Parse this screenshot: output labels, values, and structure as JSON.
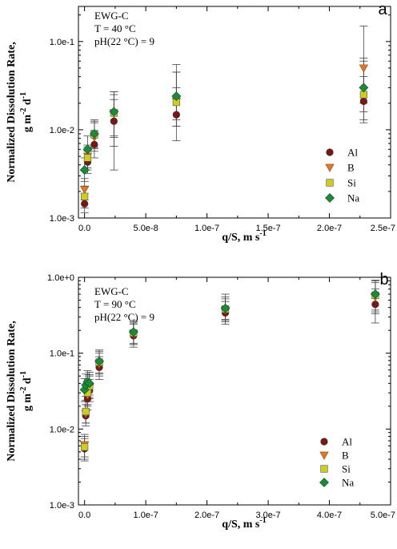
{
  "chart_data": [
    {
      "type": "scatter",
      "panel_label": "a",
      "annotations": [
        "EWG-C",
        "T = 40 °C",
        "pH(22 °C) = 9"
      ],
      "xlabel": "q/S, m s",
      "xlabel_sup": "-1",
      "ylabel_line1": "Normalized Dissolution Rate,",
      "ylabel_line2": "g m",
      "ylabel_sup1": "-2",
      "ylabel_mid": " d",
      "ylabel_sup2": "-1",
      "xlim": [
        -5e-09,
        2.5e-07
      ],
      "ylim": [
        0.001,
        0.25
      ],
      "yscale": "log",
      "xticks": [
        0,
        5e-08,
        1e-07,
        1.5e-07,
        2e-07,
        2.5e-07
      ],
      "xtick_labels": [
        "0.0",
        "5.0e-8",
        "1.0e-7",
        "1.5e-7",
        "2.0e-7",
        "2.5e-7"
      ],
      "yticks": [
        0.001,
        0.01,
        0.1
      ],
      "ytick_labels": [
        "1.0e-3",
        "1.0e-2",
        "1.0e-1"
      ],
      "legend_position": "right",
      "series": [
        {
          "name": "Al",
          "marker": "circle",
          "color": "#7a1616",
          "points": [
            {
              "x": 0.0,
              "y": 0.00145,
              "lo": 0.00115,
              "hi": 0.0019
            },
            {
              "x": 2.5e-09,
              "y": 0.0043,
              "lo": 0.0032,
              "hi": 0.0057
            },
            {
              "x": 8e-09,
              "y": 0.0068,
              "lo": 0.0048,
              "hi": 0.0098
            },
            {
              "x": 2.4e-08,
              "y": 0.0125,
              "lo": 0.0065,
              "hi": 0.022
            },
            {
              "x": 7.5e-08,
              "y": 0.0148,
              "lo": 0.0075,
              "hi": 0.03
            },
            {
              "x": 2.28e-07,
              "y": 0.021,
              "lo": 0.012,
              "hi": 0.04
            }
          ]
        },
        {
          "name": "B",
          "marker": "triangle-down",
          "color": "#e0782a",
          "points": [
            {
              "x": 0.0,
              "y": 0.0021,
              "lo": 0.0016,
              "hi": 0.0028
            },
            {
              "x": 2.5e-09,
              "y": 0.005,
              "lo": 0.0037,
              "hi": 0.0067
            },
            {
              "x": 8e-09,
              "y": 0.0082,
              "lo": 0.0057,
              "hi": 0.012
            },
            {
              "x": 2.4e-08,
              "y": 0.0155,
              "lo": 0.0082,
              "hi": 0.027
            },
            {
              "x": 7.5e-08,
              "y": 0.021,
              "lo": 0.011,
              "hi": 0.045
            },
            {
              "x": 2.28e-07,
              "y": 0.05,
              "lo": 0.02,
              "hi": 0.15
            }
          ]
        },
        {
          "name": "Si",
          "marker": "square",
          "color": "#cccc22",
          "points": [
            {
              "x": 0.0,
              "y": 0.00175,
              "lo": 0.0013,
              "hi": 0.0023
            },
            {
              "x": 2.5e-09,
              "y": 0.0048,
              "lo": 0.0035,
              "hi": 0.0064
            },
            {
              "x": 8e-09,
              "y": 0.0088,
              "lo": 0.0061,
              "hi": 0.0125
            },
            {
              "x": 2.4e-08,
              "y": 0.0155,
              "lo": 0.0035,
              "hi": 0.027
            },
            {
              "x": 7.5e-08,
              "y": 0.0205,
              "lo": 0.011,
              "hi": 0.045
            },
            {
              "x": 2.28e-07,
              "y": 0.025,
              "lo": 0.013,
              "hi": 0.06
            }
          ]
        },
        {
          "name": "Na",
          "marker": "diamond",
          "color": "#1d8a3a",
          "points": [
            {
              "x": 0.0,
              "y": 0.0035,
              "lo": 0.0026,
              "hi": 0.0048
            },
            {
              "x": 2.5e-09,
              "y": 0.006,
              "lo": 0.0045,
              "hi": 0.0085
            },
            {
              "x": 8e-09,
              "y": 0.009,
              "lo": 0.0063,
              "hi": 0.013
            },
            {
              "x": 2.4e-08,
              "y": 0.016,
              "lo": 0.0085,
              "hi": 0.025
            },
            {
              "x": 7.5e-08,
              "y": 0.024,
              "lo": 0.013,
              "hi": 0.055
            },
            {
              "x": 2.28e-07,
              "y": 0.03,
              "lo": 0.016,
              "hi": 0.065
            }
          ]
        }
      ]
    },
    {
      "type": "scatter",
      "panel_label": "b",
      "annotations": [
        "EWG-C",
        "T = 90 °C",
        "pH(22 °C) = 9"
      ],
      "xlabel": "q/S, m s",
      "xlabel_sup": "-1",
      "ylabel_line1": "Normalized Dissolution Rate,",
      "ylabel_line2": "g m",
      "ylabel_sup1": "-2",
      "ylabel_mid": " d",
      "ylabel_sup2": "-1",
      "xlim": [
        -1e-08,
        5e-07
      ],
      "ylim": [
        0.001,
        1.0
      ],
      "yscale": "log",
      "xticks": [
        0,
        1e-07,
        2e-07,
        3e-07,
        4e-07,
        5e-07
      ],
      "xtick_labels": [
        "0.0",
        "1.0e-7",
        "2.0e-7",
        "3.0e-7",
        "4.0e-7",
        "5.0e-7"
      ],
      "yticks": [
        0.001,
        0.01,
        0.1,
        1.0
      ],
      "ytick_labels": [
        "1.0e-3",
        "1.0e-2",
        "1.0e-1",
        "1.0e+0"
      ],
      "legend_position": "right",
      "series": [
        {
          "name": "Al",
          "marker": "circle",
          "color": "#7a1616",
          "points": [
            {
              "x": 0.0,
              "y": 0.0055,
              "lo": 0.0038,
              "hi": 0.0075
            },
            {
              "x": 2e-09,
              "y": 0.015,
              "lo": 0.011,
              "hi": 0.021
            },
            {
              "x": 5e-09,
              "y": 0.025,
              "lo": 0.018,
              "hi": 0.035
            },
            {
              "x": 8e-09,
              "y": 0.032,
              "lo": 0.023,
              "hi": 0.045
            },
            {
              "x": 2.4e-08,
              "y": 0.065,
              "lo": 0.045,
              "hi": 0.09
            },
            {
              "x": 8e-08,
              "y": 0.17,
              "lo": 0.12,
              "hi": 0.24
            },
            {
              "x": 2.3e-07,
              "y": 0.34,
              "lo": 0.24,
              "hi": 0.48
            },
            {
              "x": 4.75e-07,
              "y": 0.44,
              "lo": 0.25,
              "hi": 0.7
            }
          ]
        },
        {
          "name": "B",
          "marker": "triangle-down",
          "color": "#e0782a",
          "points": [
            {
              "x": 0.0,
              "y": 0.0062,
              "lo": 0.0043,
              "hi": 0.0085
            },
            {
              "x": 2e-09,
              "y": 0.016,
              "lo": 0.012,
              "hi": 0.023
            },
            {
              "x": 5e-09,
              "y": 0.028,
              "lo": 0.02,
              "hi": 0.04
            },
            {
              "x": 8e-09,
              "y": 0.035,
              "lo": 0.025,
              "hi": 0.05
            },
            {
              "x": 2.4e-08,
              "y": 0.072,
              "lo": 0.05,
              "hi": 0.1
            },
            {
              "x": 8e-08,
              "y": 0.18,
              "lo": 0.13,
              "hi": 0.25
            },
            {
              "x": 2.3e-07,
              "y": 0.37,
              "lo": 0.26,
              "hi": 0.52
            },
            {
              "x": 4.75e-07,
              "y": 0.55,
              "lo": 0.33,
              "hi": 0.85
            }
          ]
        },
        {
          "name": "Si",
          "marker": "square",
          "color": "#cccc22",
          "points": [
            {
              "x": 0.0,
              "y": 0.0058,
              "lo": 0.004,
              "hi": 0.008
            },
            {
              "x": 2e-09,
              "y": 0.017,
              "lo": 0.012,
              "hi": 0.024
            },
            {
              "x": 5e-09,
              "y": 0.03,
              "lo": 0.021,
              "hi": 0.042
            },
            {
              "x": 8e-09,
              "y": 0.037,
              "lo": 0.026,
              "hi": 0.052
            },
            {
              "x": 2.4e-08,
              "y": 0.076,
              "lo": 0.053,
              "hi": 0.106
            },
            {
              "x": 8e-08,
              "y": 0.185,
              "lo": 0.13,
              "hi": 0.26
            },
            {
              "x": 2.3e-07,
              "y": 0.38,
              "lo": 0.27,
              "hi": 0.55
            },
            {
              "x": 4.75e-07,
              "y": 0.58,
              "lo": 0.35,
              "hi": 0.9
            }
          ]
        },
        {
          "name": "Na",
          "marker": "diamond",
          "color": "#1d8a3a",
          "points": [
            {
              "x": 0.0,
              "y": 0.033,
              "lo": 0.023,
              "hi": 0.046
            },
            {
              "x": 2e-09,
              "y": 0.038,
              "lo": 0.027,
              "hi": 0.053
            },
            {
              "x": 5e-09,
              "y": 0.042,
              "lo": 0.03,
              "hi": 0.059
            },
            {
              "x": 8e-09,
              "y": 0.04,
              "lo": 0.028,
              "hi": 0.056
            },
            {
              "x": 2.4e-08,
              "y": 0.078,
              "lo": 0.055,
              "hi": 0.11
            },
            {
              "x": 8e-08,
              "y": 0.19,
              "lo": 0.135,
              "hi": 0.27
            },
            {
              "x": 2.3e-07,
              "y": 0.39,
              "lo": 0.28,
              "hi": 0.6
            },
            {
              "x": 4.75e-07,
              "y": 0.6,
              "lo": 0.37,
              "hi": 0.92
            }
          ]
        }
      ]
    }
  ]
}
